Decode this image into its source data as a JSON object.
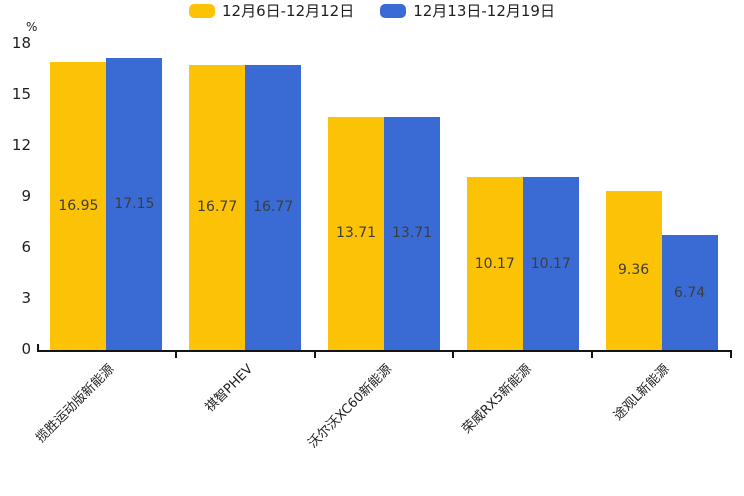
{
  "chart_data": {
    "type": "bar",
    "title": "",
    "unit_label": "%",
    "categories": [
      "揽胜运动版新能源",
      "祺智PHEV",
      "沃尔沃XC60新能源",
      "荣威RX5新能源",
      "途观L新能源"
    ],
    "series": [
      {
        "name": "12月6日-12月12日",
        "color": "#FCC306",
        "values": [
          16.95,
          16.77,
          13.71,
          10.17,
          9.36
        ]
      },
      {
        "name": "12月13日-12月19日",
        "color": "#3A6BD4",
        "values": [
          17.15,
          16.77,
          13.71,
          10.17,
          6.74
        ]
      }
    ],
    "ylim": [
      0,
      18
    ],
    "yticks": [
      0,
      3,
      6,
      9,
      12,
      15,
      18
    ],
    "grid": false,
    "legend_position": "top",
    "value_labels": "inside-center",
    "axis_color": "#141414",
    "value_label_format": "2-decimals"
  }
}
